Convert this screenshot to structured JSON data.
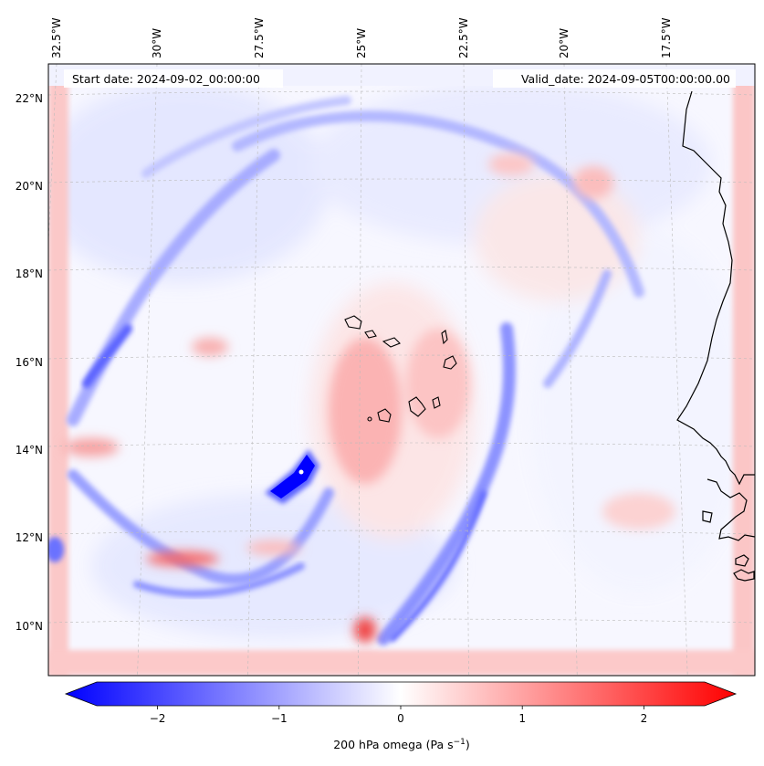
{
  "header": {
    "start_date": "Start date: 2024-09-02_00:00:00",
    "valid_date": "Valid_date: 2024-09-05T00:00:00.00"
  },
  "map": {
    "lon_labels": [
      "32.5°W",
      "30°W",
      "27.5°W",
      "25°W",
      "22.5°W",
      "20°W",
      "17.5°W"
    ],
    "lat_labels": [
      "22°N",
      "20°N",
      "18°N",
      "16°N",
      "14°N",
      "12°N",
      "10°N"
    ],
    "features": [
      {
        "name": "rainband-west",
        "kind": "negative"
      },
      {
        "name": "eye-core-negative",
        "kind": "negative"
      },
      {
        "name": "rainband-east",
        "kind": "negative"
      },
      {
        "name": "boundary-positive",
        "kind": "positive"
      },
      {
        "name": "positive-patch-center",
        "kind": "positive"
      }
    ]
  },
  "colorbar": {
    "min": -2.5,
    "max": 2.5,
    "ticks": [
      "−2",
      "−1",
      "0",
      "1",
      "2"
    ],
    "tick_values": [
      -2,
      -1,
      0,
      1,
      2
    ],
    "label_main": "200 hPa omega (Pa s",
    "label_sup": "−1",
    "label_end": ")",
    "color_neg": "#0000ff",
    "color_mid": "#ffffff",
    "color_pos": "#ff0000"
  },
  "colors": {
    "coastline": "#000000",
    "grid": "#bbbbbb"
  }
}
